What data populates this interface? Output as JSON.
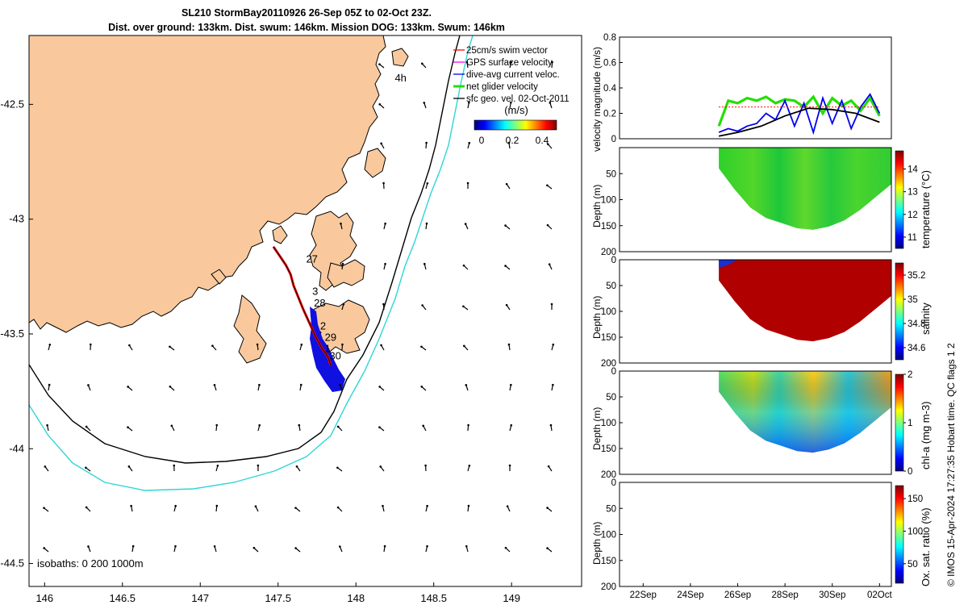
{
  "figure": {
    "title_line1": "SL210 StormBay20110926 26-Sep 05Z to 02-Oct 23Z.",
    "title_line2": "Dist. over ground: 133km. Dist. swum: 146km. Mission DOG: 133km. Swum: 146km",
    "credit": "© IMOS 15-Apr-2024 17:27:35 Hobart time. QC flags 1  2"
  },
  "colors": {
    "land": "#f9c99d",
    "track": "#ff0000",
    "dive_current": "#0000ee",
    "net_velocity": "#22e000",
    "isobath_200": "#000000",
    "isobath_1000": "#30d5d5",
    "gps_surface": "#ff00ff"
  },
  "chart_data": [
    {
      "id": "map",
      "type": "scatter",
      "xlabel": "",
      "ylabel": "",
      "xlim": [
        145.9,
        149.45
      ],
      "ylim": [
        -44.6,
        -42.2
      ],
      "xticks": [
        146,
        146.5,
        147,
        147.5,
        148,
        148.5,
        149
      ],
      "xtick_labels": [
        "146",
        "146.5",
        "147",
        "147.5",
        "148",
        "148.5",
        "149"
      ],
      "yticks": [
        -42.5,
        -43,
        -43.5,
        -44,
        -44.5
      ],
      "ytick_labels": [
        "-42.5",
        "-43",
        "-43.5",
        "-44",
        "-44.5"
      ],
      "legend": [
        "25cm/s swim vector",
        "GPS surface velocity",
        "dive-avg current veloc.",
        "net glider velocity",
        "sfc geo. vel. 02-Oct-2011"
      ],
      "legend_position": "top-right",
      "colorbar": {
        "label": "(m/s)",
        "ticks": [
          "0",
          "0.2",
          "0.4"
        ],
        "range": [
          0,
          0.5
        ]
      },
      "isobaths_label": "isobaths: 0   200  1000m",
      "glider_track": [
        {
          "lon": 147.47,
          "lat": -43.12
        },
        {
          "lon": 147.51,
          "lat": -43.16
        },
        {
          "lon": 147.55,
          "lat": -43.2
        },
        {
          "lon": 147.58,
          "lat": -43.24
        },
        {
          "lon": 147.6,
          "lat": -43.29
        },
        {
          "lon": 147.63,
          "lat": -43.34
        },
        {
          "lon": 147.66,
          "lat": -43.39
        },
        {
          "lon": 147.7,
          "lat": -43.45
        },
        {
          "lon": 147.74,
          "lat": -43.51
        },
        {
          "lon": 147.78,
          "lat": -43.56
        },
        {
          "lon": 147.82,
          "lat": -43.6
        },
        {
          "lon": 147.84,
          "lat": -43.64
        }
      ],
      "day_labels": [
        {
          "text": "27",
          "lon": 147.68,
          "lat": -43.19
        },
        {
          "text": "3",
          "lon": 147.72,
          "lat": -43.33
        },
        {
          "text": "28",
          "lon": 147.73,
          "lat": -43.38
        },
        {
          "text": "2",
          "lon": 147.77,
          "lat": -43.48
        },
        {
          "text": "29",
          "lon": 147.8,
          "lat": -43.53
        },
        {
          "text": "1",
          "lon": 147.8,
          "lat": -43.58
        },
        {
          "text": "30",
          "lon": 147.83,
          "lat": -43.61
        },
        {
          "text": "4h",
          "lon": 148.25,
          "lat": -42.4
        }
      ]
    },
    {
      "id": "velocity",
      "type": "line",
      "ylabel": "velocity magnitude (m/s)",
      "ylim": [
        0,
        0.8
      ],
      "yticks": [
        0,
        0.2,
        0.4,
        0.6,
        0.8
      ],
      "ytick_labels": [
        "0",
        "0.2",
        "0.4",
        "0.6",
        "0.8"
      ],
      "xlim": [
        0,
        11.5
      ],
      "series": [
        {
          "name": "net glider velocity",
          "x": [
            4.2,
            4.6,
            5.0,
            5.4,
            5.8,
            6.2,
            6.6,
            7.0,
            7.4,
            7.8,
            8.2,
            8.6,
            9.0,
            9.4,
            9.8,
            10.2,
            10.6,
            11.0
          ],
          "values": [
            0.1,
            0.3,
            0.28,
            0.32,
            0.3,
            0.33,
            0.28,
            0.31,
            0.3,
            0.25,
            0.33,
            0.2,
            0.32,
            0.26,
            0.3,
            0.22,
            0.32,
            0.18
          ]
        },
        {
          "name": "dive-avg current veloc.",
          "x": [
            4.2,
            4.6,
            5.0,
            5.4,
            5.8,
            6.2,
            6.6,
            7.0,
            7.4,
            7.8,
            8.2,
            8.6,
            9.0,
            9.4,
            9.8,
            10.2,
            10.6,
            11.0
          ],
          "values": [
            0.05,
            0.08,
            0.06,
            0.1,
            0.12,
            0.2,
            0.15,
            0.3,
            0.1,
            0.28,
            0.05,
            0.32,
            0.12,
            0.3,
            0.08,
            0.25,
            0.35,
            0.2
          ]
        },
        {
          "name": "sfc geo. vel.",
          "x": [
            4.2,
            5.0,
            6.0,
            7.0,
            8.0,
            9.0,
            10.0,
            11.0
          ],
          "values": [
            0.02,
            0.05,
            0.1,
            0.18,
            0.24,
            0.23,
            0.2,
            0.13
          ]
        },
        {
          "name": "swim",
          "x": [
            4.2,
            5.0,
            6.0,
            7.0,
            8.0,
            9.0,
            10.0,
            11.0
          ],
          "values": [
            0.25,
            0.25,
            0.25,
            0.25,
            0.25,
            0.25,
            0.25,
            0.25
          ]
        }
      ]
    },
    {
      "id": "temperature",
      "type": "heatmap",
      "ylabel": "Depth (m)",
      "ylim": [
        200,
        0
      ],
      "yticks": [
        0,
        50,
        100,
        150,
        200
      ],
      "ytick_labels": [
        "",
        "50",
        "100",
        "150",
        "200"
      ],
      "colorbar": {
        "label": "temperature (°C)",
        "ticks": [
          "11",
          "12",
          "13",
          "14"
        ],
        "range": [
          10.5,
          14.8
        ]
      },
      "mean_value": 12.6
    },
    {
      "id": "salinity",
      "type": "heatmap",
      "ylabel": "Depth (m)",
      "ylim": [
        200,
        0
      ],
      "yticks": [
        0,
        50,
        100,
        150,
        200
      ],
      "ytick_labels": [
        "0",
        "50",
        "100",
        "150",
        "200"
      ],
      "colorbar": {
        "label": "salinity",
        "ticks": [
          "34.6",
          "34.8",
          "35",
          "35.2"
        ],
        "range": [
          34.5,
          35.3
        ]
      },
      "mean_value": 35.25
    },
    {
      "id": "chla",
      "type": "heatmap",
      "ylabel": "Depth (m)",
      "ylim": [
        200,
        0
      ],
      "yticks": [
        0,
        50,
        100,
        150,
        200
      ],
      "ytick_labels": [
        "0",
        "50",
        "100",
        "150",
        "200"
      ],
      "colorbar": {
        "label": "chl-a (mg m-3)",
        "ticks": [
          "0",
          "1",
          "2"
        ],
        "range": [
          0,
          2
        ]
      },
      "mean_value": 0.9
    },
    {
      "id": "oxygen",
      "type": "heatmap",
      "ylabel": "Depth (m)",
      "ylim": [
        200,
        0
      ],
      "yticks": [
        0,
        50,
        100,
        150,
        200
      ],
      "ytick_labels": [
        "0",
        "50",
        "100",
        "150",
        "200"
      ],
      "xtick_labels": [
        "22Sep",
        "24Sep",
        "26Sep",
        "28Sep",
        "30Sep",
        "02Oct"
      ],
      "xticks_days": [
        1,
        3,
        5,
        7,
        9,
        11
      ],
      "xlim": [
        0,
        11.5
      ],
      "colorbar": {
        "label": "Ox. sat. ratio (%)",
        "ticks": [
          "50",
          "100",
          "150"
        ],
        "range": [
          20,
          170
        ]
      }
    }
  ],
  "section_profile": {
    "x_start_day": 4.2,
    "x_end_day": 11.5,
    "bottom_depths": [
      40,
      80,
      115,
      135,
      145,
      155,
      158,
      152,
      140,
      120,
      95,
      70
    ]
  }
}
